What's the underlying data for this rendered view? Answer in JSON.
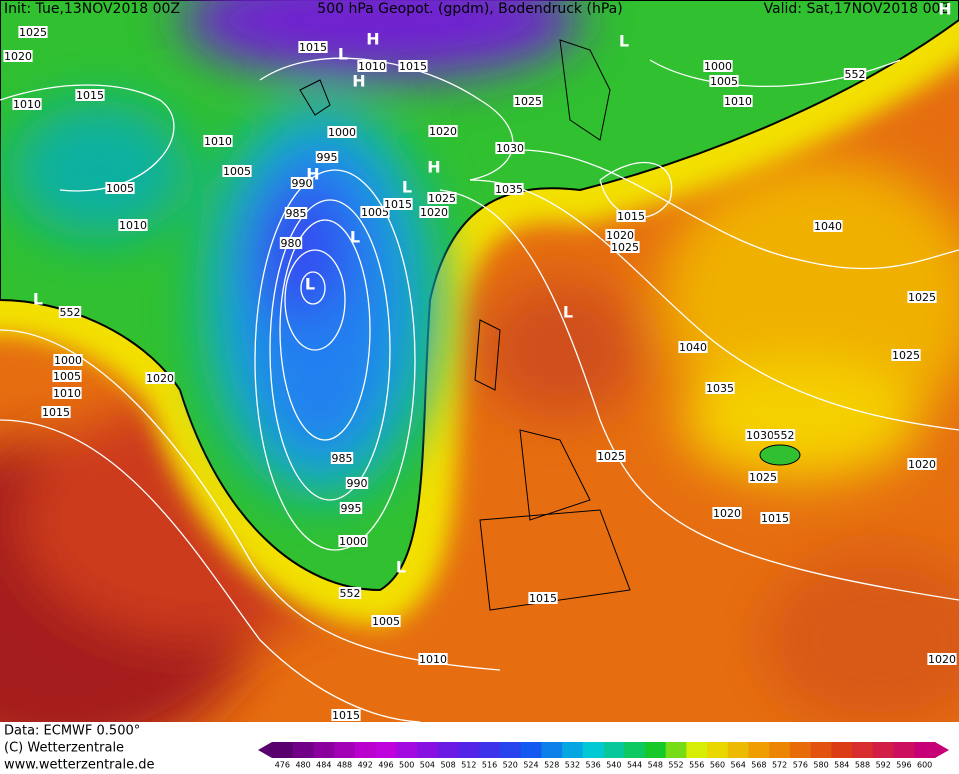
{
  "header": {
    "init": "Init: Tue,13NOV2018 00Z",
    "title": "500 hPa Geopot. (gpdm), Bodendruck (hPa)",
    "valid": "Valid: Sat,17NOV2018 00Z"
  },
  "isobar_labels": [
    "1025",
    "1020",
    "1010",
    "1015",
    "1010",
    "1005",
    "1005",
    "1010",
    "1015",
    "1010",
    "1015",
    "1000",
    "995",
    "990",
    "985",
    "980",
    "1005",
    "1015",
    "1025",
    "1020",
    "1025",
    "1020",
    "1030",
    "1035",
    "1000",
    "1005",
    "1010",
    "1015",
    "1020",
    "1025",
    "1040",
    "1025",
    "1040",
    "1025",
    "1035",
    "1030",
    "1025",
    "1020",
    "1025",
    "1020",
    "1015",
    "985",
    "990",
    "995",
    "1000",
    "1005",
    "1010",
    "1015",
    "1020",
    "1000",
    "1005",
    "1010",
    "1015",
    "1015",
    "1020"
  ],
  "geopotential_labels": [
    "552",
    "552",
    "552",
    "552"
  ],
  "pressure_centers": [
    "H",
    "L",
    "L",
    "H",
    "H",
    "L",
    "L",
    "L",
    "H",
    "L",
    "L",
    "L",
    "H"
  ],
  "footer": {
    "data": "Data: ECMWF   0.500°",
    "copyright": "(C) Wetterzentrale",
    "url": "www.wetterzentrale.de"
  },
  "colorbar": {
    "ticks": [
      476,
      480,
      484,
      488,
      492,
      496,
      500,
      504,
      508,
      512,
      516,
      520,
      524,
      528,
      532,
      536,
      540,
      544,
      548,
      552,
      556,
      560,
      564,
      568,
      572,
      576,
      580,
      584,
      588,
      592,
      596,
      600
    ]
  }
}
